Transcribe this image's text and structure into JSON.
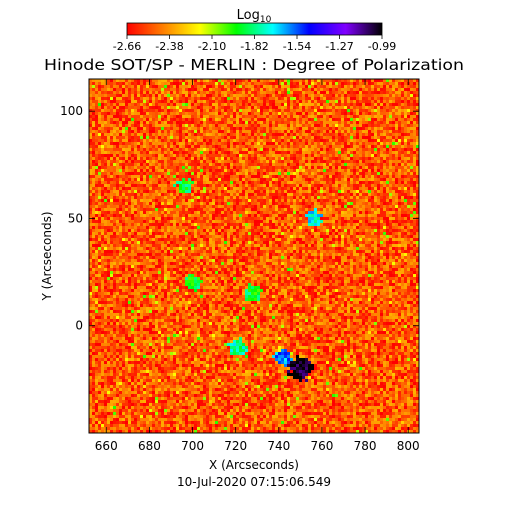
{
  "chart_data": {
    "type": "heatmap",
    "title": "Hinode SOT/SP - MERLIN : Degree of Polarization",
    "xlabel": "X (Arcseconds)",
    "ylabel": "Y (Arcseconds)",
    "footer": "10-Jul-2020 07:15:06.549",
    "colorbar": {
      "label_base": "Log",
      "label_sub": "10",
      "ticks": [
        "-2.66",
        "-2.38",
        "-2.10",
        "-1.82",
        "-1.54",
        "-1.27",
        "-0.99"
      ],
      "range": [
        -2.66,
        -0.99
      ],
      "colormap": [
        "#ff0000",
        "#ff8000",
        "#ffff00",
        "#00ff00",
        "#00ffff",
        "#0000ff",
        "#8000ff",
        "#000000"
      ]
    },
    "x_ticks": [
      660,
      680,
      700,
      720,
      740,
      760,
      780,
      800
    ],
    "y_ticks": [
      0,
      50,
      100
    ],
    "xlim": [
      652,
      805
    ],
    "ylim": [
      -50,
      115
    ],
    "grid": false,
    "background_level": -2.5,
    "features": [
      {
        "name": "strong polarization patch",
        "x": 750,
        "y": -20,
        "value": -1.0
      },
      {
        "name": "polarization patch",
        "x": 742,
        "y": -15,
        "value": -1.6
      },
      {
        "name": "network element",
        "x": 721,
        "y": -10,
        "value": -1.8
      },
      {
        "name": "network element",
        "x": 700,
        "y": 20,
        "value": -1.9
      },
      {
        "name": "network element",
        "x": 756,
        "y": 50,
        "value": -1.7
      },
      {
        "name": "network element",
        "x": 696,
        "y": 65,
        "value": -1.9
      },
      {
        "name": "network element",
        "x": 728,
        "y": 15,
        "value": -1.9
      }
    ]
  }
}
